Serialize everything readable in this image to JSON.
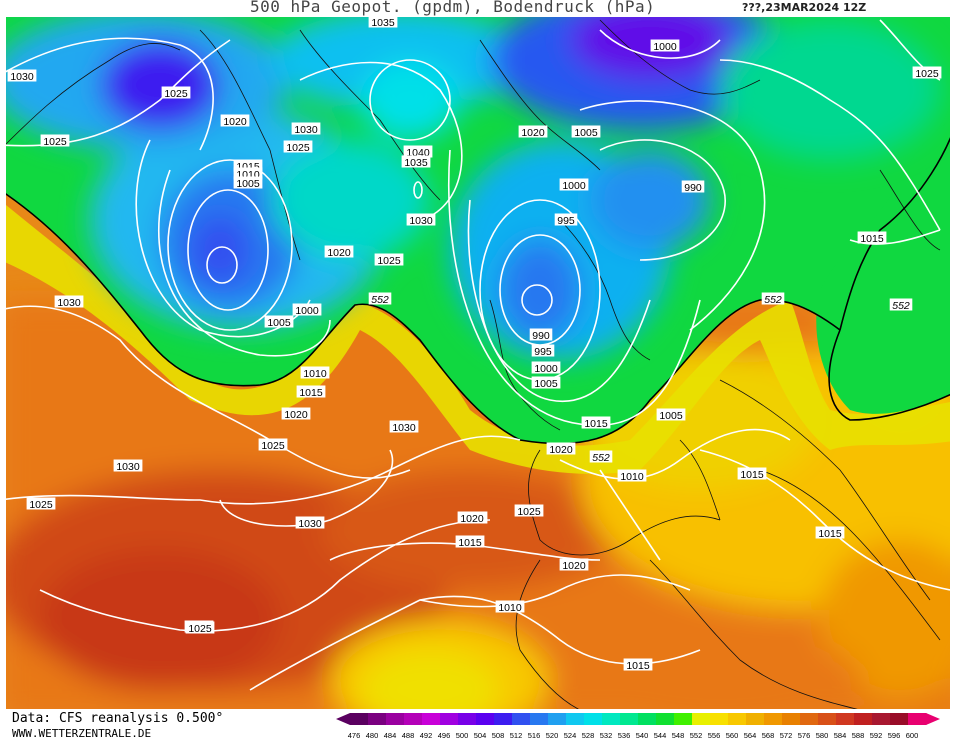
{
  "header": {
    "title": "500 hPa Geopot. (gpdm), Bodendruck (hPa)",
    "run_info": "???,23MAR2024 12Z"
  },
  "footer": {
    "data_source": "Data: CFS reanalysis 0.500°",
    "website": "WWW.WETTERZENTRALE.DE"
  },
  "legend": {
    "ticks": [
      "476",
      "480",
      "484",
      "488",
      "492",
      "496",
      "500",
      "504",
      "508",
      "512",
      "516",
      "520",
      "524",
      "528",
      "532",
      "536",
      "540",
      "544",
      "548",
      "552",
      "556",
      "560",
      "564",
      "568",
      "572",
      "576",
      "580",
      "584",
      "588",
      "592",
      "596",
      "600"
    ],
    "colors": [
      "#5a0060",
      "#7a0080",
      "#9a00a0",
      "#b400b8",
      "#c800d8",
      "#a000e0",
      "#7800e8",
      "#5a00f0",
      "#3c1cf0",
      "#3050f0",
      "#2878f0",
      "#20a0f0",
      "#10c8f0",
      "#00e0e8",
      "#00e8c0",
      "#00e890",
      "#00e060",
      "#10e030",
      "#40f000",
      "#e8f000",
      "#f8e000",
      "#f8c800",
      "#f0b000",
      "#f09800",
      "#e88000",
      "#e06810",
      "#d85018",
      "#d03820",
      "#c02020",
      "#a81830",
      "#980c28",
      "#e80070"
    ],
    "left_arrow_color": "#5a0060",
    "right_arrow_color": "#e80070"
  },
  "map": {
    "isobar_labels": [
      {
        "text": "1035"
      },
      {
        "text": "1030"
      },
      {
        "text": "1025"
      },
      {
        "text": "1025"
      },
      {
        "text": "1020"
      },
      {
        "text": "1030"
      },
      {
        "text": "1025"
      },
      {
        "text": "1015"
      },
      {
        "text": "1010"
      },
      {
        "text": "1005"
      },
      {
        "text": "1040"
      },
      {
        "text": "1035"
      },
      {
        "text": "1030"
      },
      {
        "text": "1020"
      },
      {
        "text": "1025"
      },
      {
        "text": "1000"
      },
      {
        "text": "1005"
      },
      {
        "text": "1010"
      },
      {
        "text": "1015"
      },
      {
        "text": "1020"
      },
      {
        "text": "1025"
      },
      {
        "text": "1030"
      },
      {
        "text": "1030"
      },
      {
        "text": "1030"
      },
      {
        "text": "1025"
      },
      {
        "text": "1020"
      },
      {
        "text": "1010"
      },
      {
        "text": "1000"
      },
      {
        "text": "1020"
      },
      {
        "text": "1005"
      },
      {
        "text": "1000"
      },
      {
        "text": "990"
      },
      {
        "text": "995"
      },
      {
        "text": "990"
      },
      {
        "text": "995"
      },
      {
        "text": "1000"
      },
      {
        "text": "1005"
      },
      {
        "text": "1015"
      },
      {
        "text": "1020"
      },
      {
        "text": "1005"
      },
      {
        "text": "1010"
      },
      {
        "text": "1015"
      },
      {
        "text": "1015"
      },
      {
        "text": "1020"
      },
      {
        "text": "1025"
      },
      {
        "text": "1015"
      },
      {
        "text": "1020"
      },
      {
        "text": "1030"
      },
      {
        "text": "1025"
      },
      {
        "text": "1010"
      },
      {
        "text": "1015"
      },
      {
        "text": "1025"
      },
      {
        "text": "1015"
      }
    ],
    "h552_labels": [
      {
        "text": "552"
      },
      {
        "text": "552"
      },
      {
        "text": "552"
      },
      {
        "text": "552"
      }
    ]
  }
}
